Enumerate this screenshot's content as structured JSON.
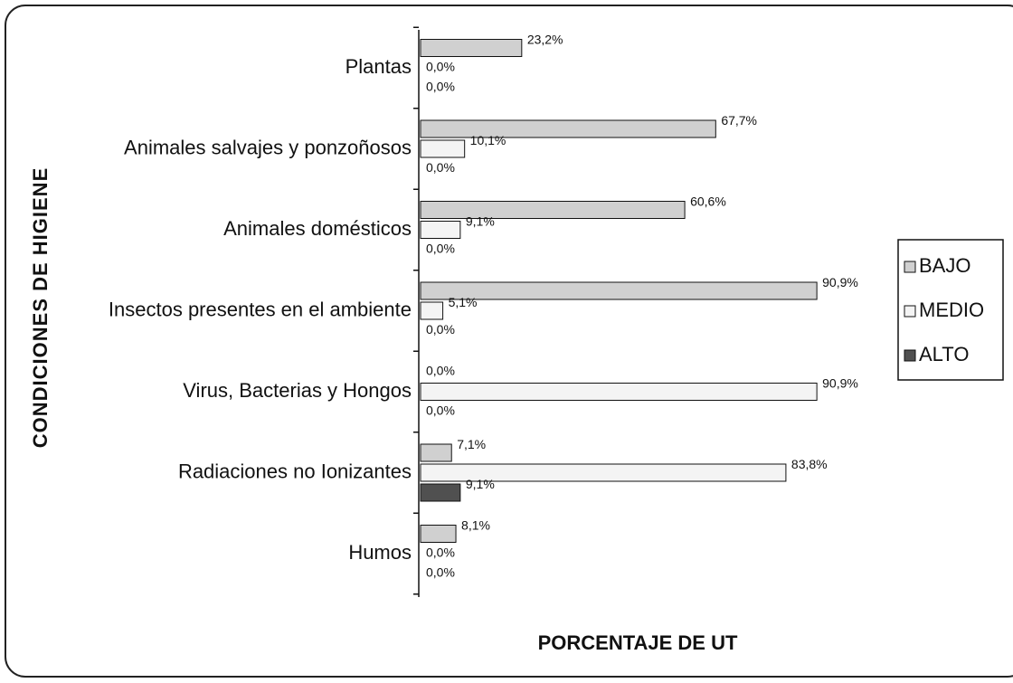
{
  "chart_data": {
    "type": "bar",
    "orientation": "horizontal",
    "x_axis_label": "PORCENTAJE DE UT",
    "y_axis_label": "CONDICIONES DE HIGIENE",
    "categories": [
      "Plantas",
      "Animales salvajes y ponzoñosos",
      "Animales domésticos",
      "Insectos presentes en el ambiente",
      "Virus, Bacterias y Hongos",
      "Radiaciones no Ionizantes",
      "Humos"
    ],
    "series": [
      {
        "name": "BAJO",
        "color": "#d0d0d0",
        "values": [
          23.2,
          67.7,
          60.6,
          90.9,
          0.0,
          7.1,
          8.1
        ],
        "value_labels": [
          "23,2%",
          "67,7%",
          "60,6%",
          "90,9%",
          "0,0%",
          "7,1%",
          "8,1%"
        ]
      },
      {
        "name": "MEDIO",
        "color": "#f4f4f4",
        "values": [
          0.0,
          10.1,
          9.1,
          5.1,
          90.9,
          83.8,
          0.0
        ],
        "value_labels": [
          "0,0%",
          "10,1%",
          "9,1%",
          "5,1%",
          "90,9%",
          "83,8%",
          "0,0%"
        ]
      },
      {
        "name": "ALTO",
        "color": "#505050",
        "values": [
          0.0,
          0.0,
          0.0,
          0.0,
          0.0,
          9.1,
          0.0
        ],
        "value_labels": [
          "0,0%",
          "0,0%",
          "0,0%",
          "0,0%",
          "0,0%",
          "9,1%",
          "0,0%"
        ]
      }
    ],
    "legend": "right"
  }
}
